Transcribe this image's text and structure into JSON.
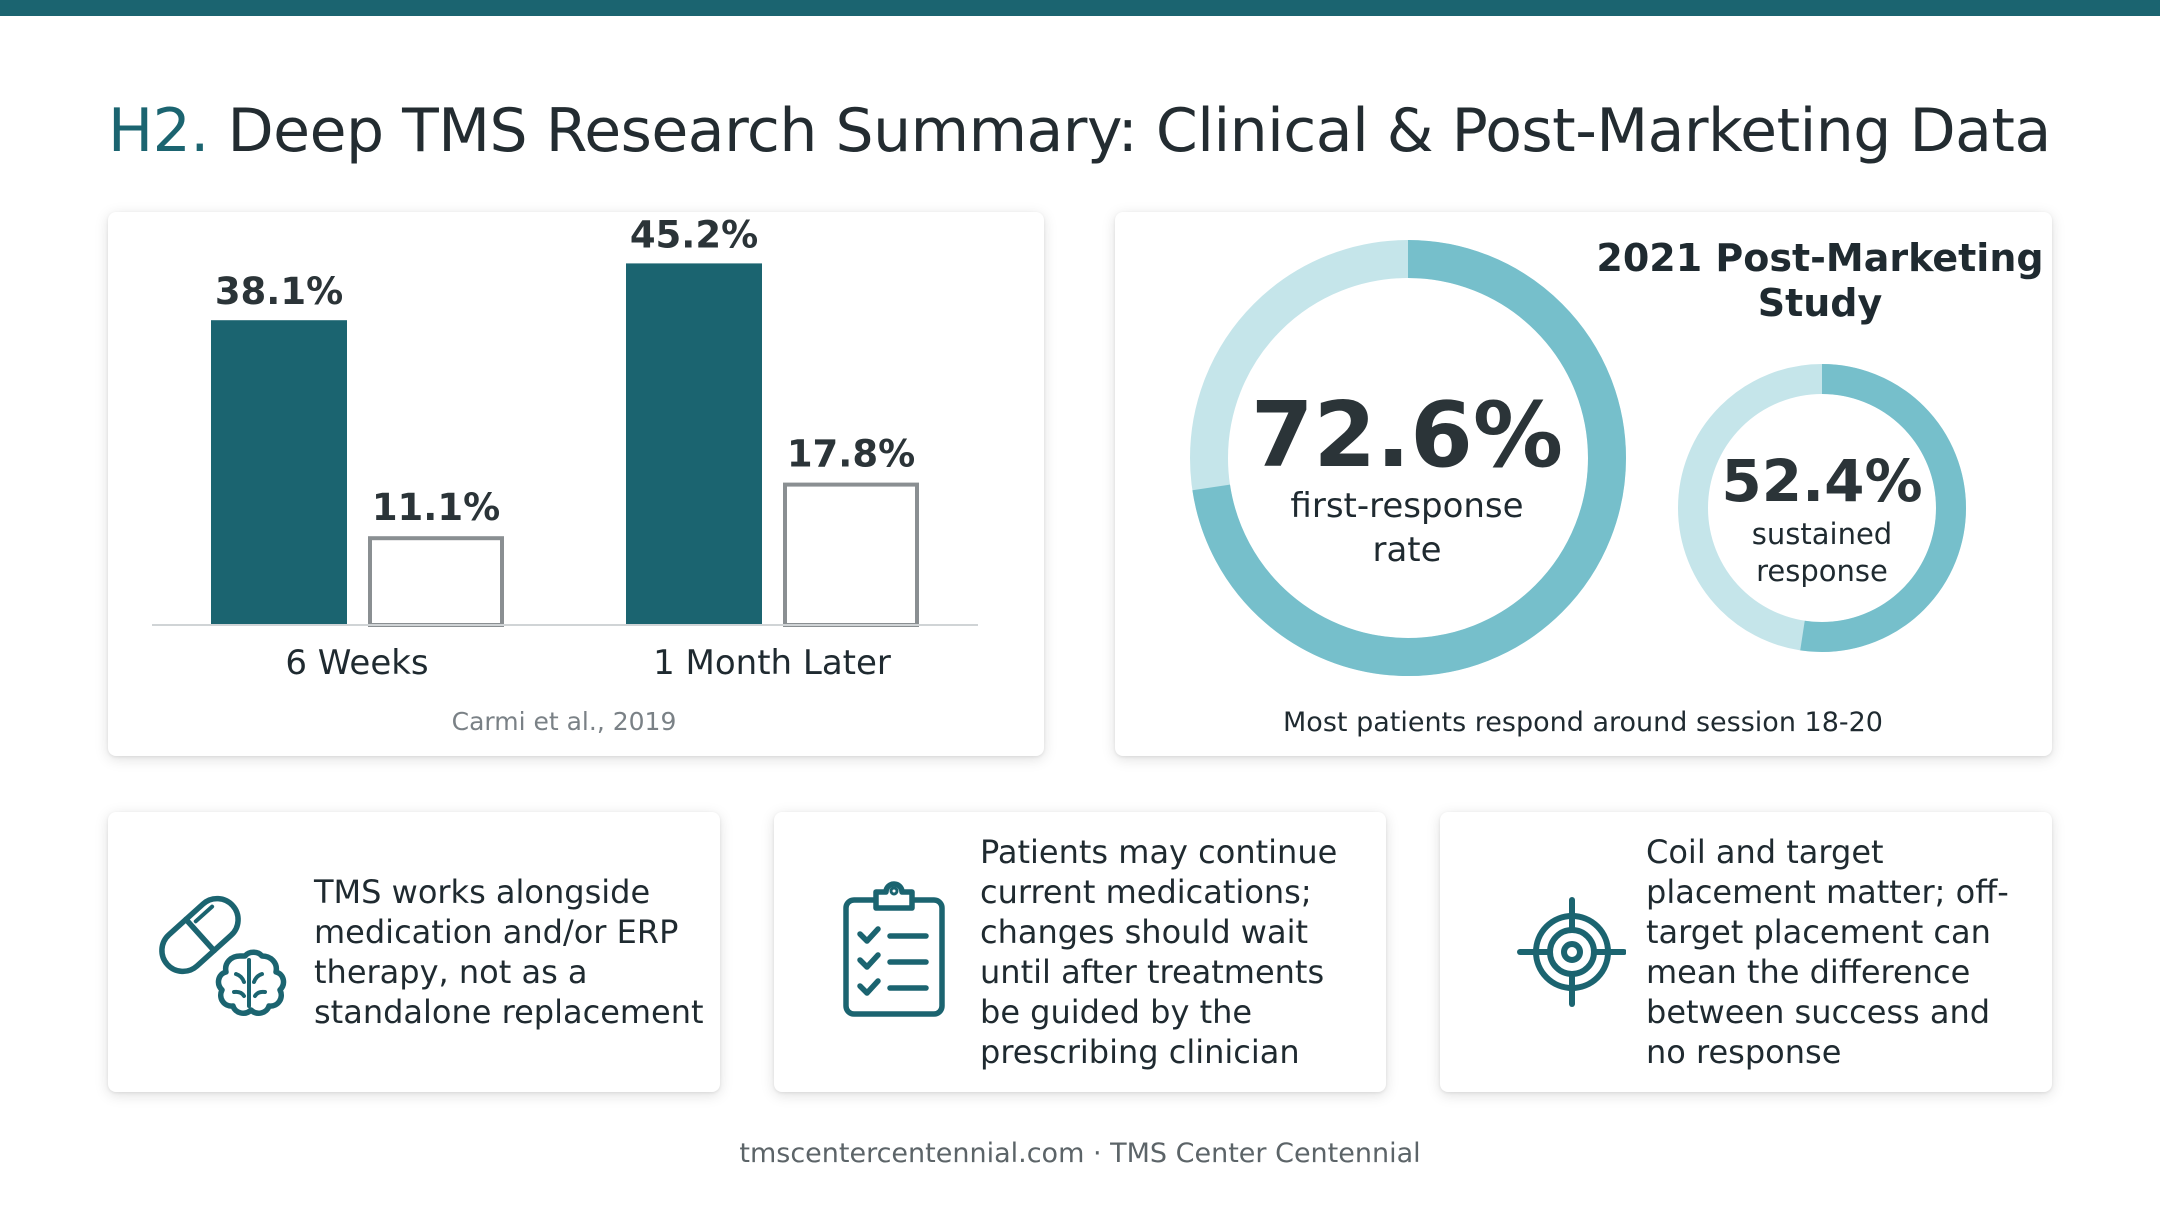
{
  "header": {
    "prefix": "H2.",
    "title": "Deep TMS Research Summary: Clinical & Post-Marketing Data"
  },
  "chart_data": [
    {
      "type": "bar",
      "categories": [
        "6 Weeks",
        "1 Month Later"
      ],
      "series": [
        {
          "values": [
            38.1,
            45.2
          ],
          "color": "#1b6470",
          "style": "filled"
        },
        {
          "values": [
            11.1,
            17.8
          ],
          "color": "#8a8f92",
          "style": "outline"
        }
      ],
      "value_labels": [
        [
          "38.1%",
          "45.2%"
        ],
        [
          "11.1%",
          "17.8%"
        ]
      ],
      "ylim": [
        0,
        50
      ],
      "grid": false,
      "source": "Carmi et al., 2019"
    },
    {
      "type": "pie",
      "title": "2021 Post-Marketing Study",
      "rings": [
        {
          "value": 72.6,
          "label": "72.6%",
          "caption": [
            "first-response",
            "rate"
          ]
        },
        {
          "value": 52.4,
          "label": "52.4%",
          "caption": [
            "sustained",
            "response"
          ]
        }
      ],
      "colors": {
        "filled": "#76bfcb",
        "remaining": "#c5e5ea"
      },
      "note": "Most patients respond around session 18-20"
    }
  ],
  "info_cards": [
    {
      "icon": "pill-brain-icon",
      "text": "TMS works alongside medication and/or ERP therapy, not as a standalone replacement"
    },
    {
      "icon": "clipboard-checklist-icon",
      "text": "Patients may continue current medications; changes should wait until after treatments be guided by the prescribing clinician"
    },
    {
      "icon": "target-crosshair-icon",
      "text": "Coil and target placement matter; off-target placement can mean the difference between success and no response"
    }
  ],
  "footer": {
    "text": "tmscentercentennial.com · TMS Center Centennial"
  },
  "colors": {
    "accent": "#1b6470",
    "donut": "#76bfcb",
    "donut_light": "#c5e5ea"
  }
}
